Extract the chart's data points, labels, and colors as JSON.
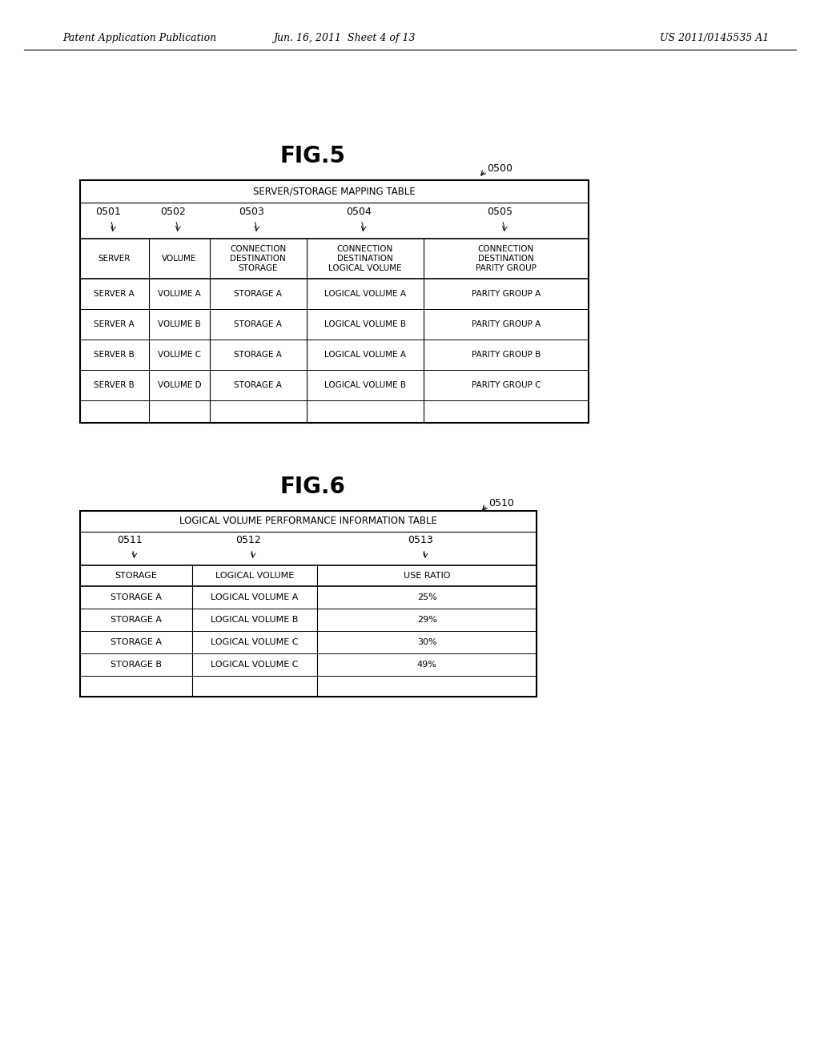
{
  "bg_color": "#ffffff",
  "header_left": "Patent Application Publication",
  "header_mid": "Jun. 16, 2011  Sheet 4 of 13",
  "header_right": "US 2011/0145535 A1",
  "fig5_label": "FIG.5",
  "fig5_ref": "0500",
  "fig5_table_title": "SERVER/STORAGE MAPPING TABLE",
  "fig5_col_refs": [
    "0501",
    "0502",
    "0503",
    "0504",
    "0505"
  ],
  "fig5_col_headers": [
    "SERVER",
    "VOLUME",
    "CONNECTION\nDESTINATION\nSTORAGE",
    "CONNECTION\nDESTINATION\nLOGICAL VOLUME",
    "CONNECTION\nDESTINATION\nPARITY GROUP"
  ],
  "fig5_rows": [
    [
      "SERVER A",
      "VOLUME A",
      "STORAGE A",
      "LOGICAL VOLUME A",
      "PARITY GROUP A"
    ],
    [
      "SERVER A",
      "VOLUME B",
      "STORAGE A",
      "LOGICAL VOLUME B",
      "PARITY GROUP A"
    ],
    [
      "SERVER B",
      "VOLUME C",
      "STORAGE A",
      "LOGICAL VOLUME A",
      "PARITY GROUP B"
    ],
    [
      "SERVER B",
      "VOLUME D",
      "STORAGE A",
      "LOGICAL VOLUME B",
      "PARITY GROUP C"
    ]
  ],
  "fig6_label": "FIG.6",
  "fig6_ref": "0510",
  "fig6_table_title": "LOGICAL VOLUME PERFORMANCE INFORMATION TABLE",
  "fig6_col_refs": [
    "0511",
    "0512",
    "0513"
  ],
  "fig6_col_headers": [
    "STORAGE",
    "LOGICAL VOLUME",
    "USE RATIO"
  ],
  "fig6_rows": [
    [
      "STORAGE A",
      "LOGICAL VOLUME A",
      "25%"
    ],
    [
      "STORAGE A",
      "LOGICAL VOLUME B",
      "29%"
    ],
    [
      "STORAGE A",
      "LOGICAL VOLUME C",
      "30%"
    ],
    [
      "STORAGE B",
      "LOGICAL VOLUME C",
      "49%"
    ]
  ]
}
